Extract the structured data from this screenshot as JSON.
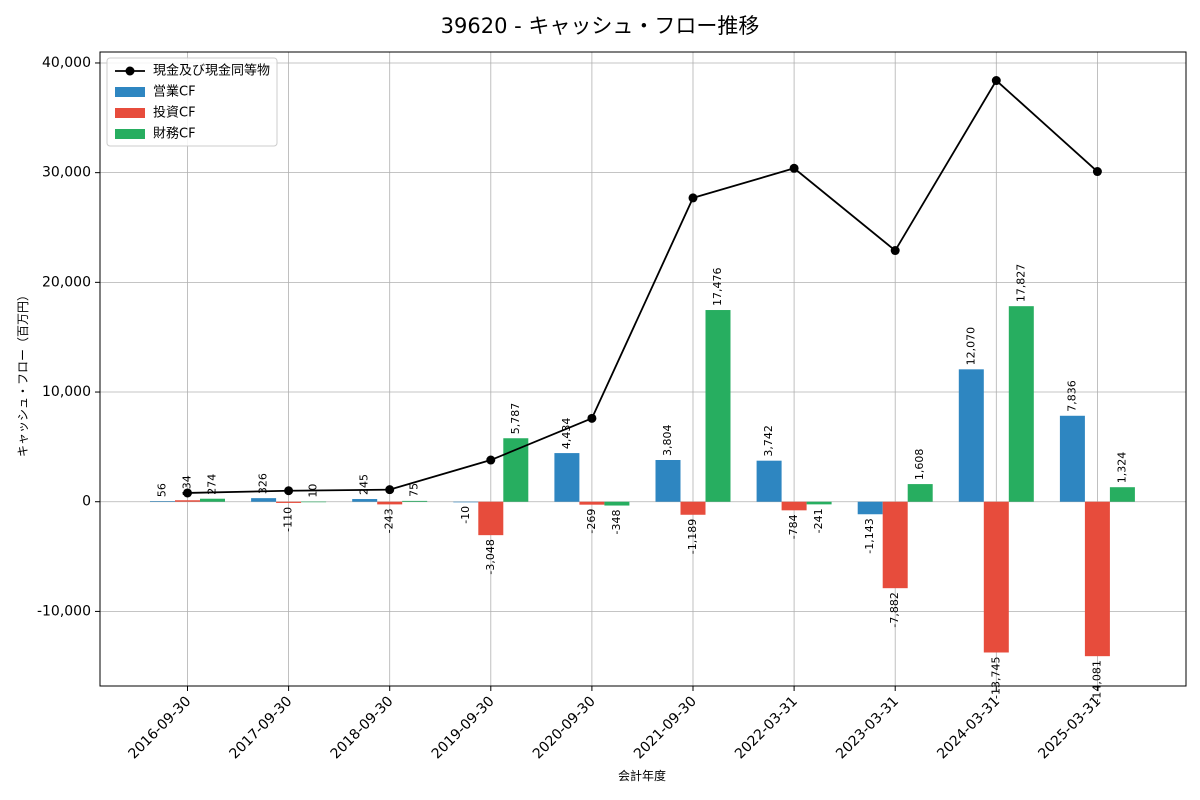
{
  "chart_data": {
    "type": "bar",
    "title": "39620 - キャッシュ・フロー推移",
    "xlabel": "会計年度",
    "ylabel": "キャッシュ・フロー（百万円）",
    "ylim": [
      -16800,
      41000
    ],
    "yticks": [
      -10000,
      0,
      10000,
      20000,
      30000,
      40000
    ],
    "ytick_labels": [
      "-10,000",
      "0",
      "10,000",
      "20,000",
      "30,000",
      "40,000"
    ],
    "grid": true,
    "legend_position": "top-left",
    "categories": [
      "2016-09-30",
      "2017-09-30",
      "2018-09-30",
      "2019-09-30",
      "2020-09-30",
      "2021-09-30",
      "2022-03-31",
      "2023-03-31",
      "2024-03-31",
      "2025-03-31"
    ],
    "series": [
      {
        "name": "営業CF",
        "kind": "bar",
        "color": "#2e86c1",
        "values": [
          56,
          326,
          245,
          -10,
          4434,
          3804,
          3742,
          -1143,
          12070,
          7836
        ],
        "labels": [
          "56",
          "326",
          "245",
          "-10",
          "4,434",
          "3,804",
          "3,742",
          "-1,143",
          "12,070",
          "7,836"
        ]
      },
      {
        "name": "投資CF",
        "kind": "bar",
        "color": "#e74c3c",
        "values": [
          134,
          -110,
          -243,
          -3048,
          -269,
          -1189,
          -784,
          -7882,
          -13745,
          -14081
        ],
        "labels": [
          "134",
          "-110",
          "-243",
          "-3,048",
          "-269",
          "-1,189",
          "-784",
          "-7,882",
          "-13,745",
          "-14,081"
        ]
      },
      {
        "name": "財務CF",
        "kind": "bar",
        "color": "#27ae60",
        "values": [
          274,
          10,
          75,
          5787,
          -348,
          17476,
          -241,
          1608,
          17827,
          1324
        ],
        "labels": [
          "274",
          "10",
          "75",
          "5,787",
          "-348",
          "17,476",
          "-241",
          "1,608",
          "17,827",
          "1,324"
        ]
      },
      {
        "name": "現金及び現金同等物",
        "kind": "line",
        "color": "#000000",
        "values": [
          800,
          1000,
          1100,
          3800,
          7600,
          27700,
          30400,
          22900,
          38400,
          30100
        ]
      }
    ]
  }
}
